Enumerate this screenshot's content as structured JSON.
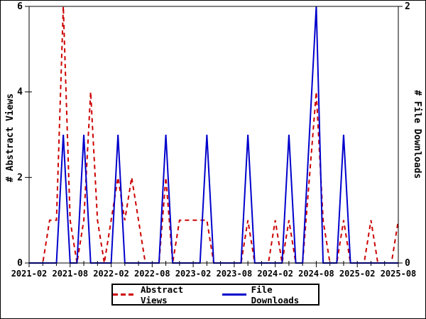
{
  "chart_data": {
    "type": "line",
    "title": "",
    "months": [
      "2021-02",
      "2021-03",
      "2021-04",
      "2021-05",
      "2021-06",
      "2021-07",
      "2021-08",
      "2021-09",
      "2021-10",
      "2021-11",
      "2021-12",
      "2022-01",
      "2022-02",
      "2022-03",
      "2022-04",
      "2022-05",
      "2022-06",
      "2022-07",
      "2022-08",
      "2022-09",
      "2022-10",
      "2022-11",
      "2022-12",
      "2023-01",
      "2023-02",
      "2023-03",
      "2023-04",
      "2023-05",
      "2023-06",
      "2023-07",
      "2023-08",
      "2023-09",
      "2023-10",
      "2023-11",
      "2023-12",
      "2024-01",
      "2024-02",
      "2024-03",
      "2024-04",
      "2024-05",
      "2024-06",
      "2024-07",
      "2024-08",
      "2024-09",
      "2024-10",
      "2024-11",
      "2024-12",
      "2025-01",
      "2025-02",
      "2025-03",
      "2025-04",
      "2025-05",
      "2025-06",
      "2025-07",
      "2025-08"
    ],
    "series": [
      {
        "name": "Abstract Views",
        "axis": "left",
        "color": "#cc0000",
        "style": "dashed",
        "values": [
          0,
          0,
          0,
          1,
          1,
          6,
          1,
          0,
          1,
          4,
          1,
          0,
          1,
          2,
          1,
          2,
          1,
          0,
          0,
          0,
          2,
          0,
          1,
          1,
          1,
          1,
          1,
          0,
          0,
          0,
          0,
          0,
          1,
          0,
          0,
          0,
          1,
          0,
          1,
          0,
          0,
          2,
          4,
          1,
          0,
          0,
          1,
          0,
          0,
          0,
          1,
          0,
          0,
          0,
          1
        ]
      },
      {
        "name": "File Downloads",
        "axis": "right",
        "color": "#0000cc",
        "style": "solid",
        "values": [
          0,
          0,
          0,
          0,
          0,
          1,
          0,
          0,
          1,
          0,
          0,
          0,
          0,
          1,
          0,
          0,
          0,
          0,
          0,
          0,
          1,
          0,
          0,
          0,
          0,
          0,
          1,
          0,
          0,
          0,
          0,
          0,
          1,
          0,
          0,
          0,
          0,
          0,
          1,
          0,
          0,
          1,
          2,
          0,
          0,
          0,
          1,
          0,
          0,
          0,
          0,
          0,
          0,
          0,
          0
        ]
      }
    ],
    "x_tick_labels": [
      "2021-02",
      "2021-08",
      "2022-02",
      "2022-08",
      "2023-02",
      "2023-08",
      "2024-02",
      "2024-08",
      "2025-02",
      "2025-08"
    ],
    "x_major_every": 6,
    "x_minor_every": 2,
    "left_axis": {
      "label": "# Abstract Views",
      "range": [
        0,
        6
      ],
      "ticks": [
        0,
        2,
        4,
        6
      ]
    },
    "right_axis": {
      "label": "# File Downloads",
      "range": [
        0,
        2
      ],
      "ticks": [
        0,
        2
      ]
    },
    "legend": {
      "position": "bottom-center",
      "entries": [
        "Abstract Views",
        "File Downloads"
      ]
    },
    "grid": "off"
  }
}
